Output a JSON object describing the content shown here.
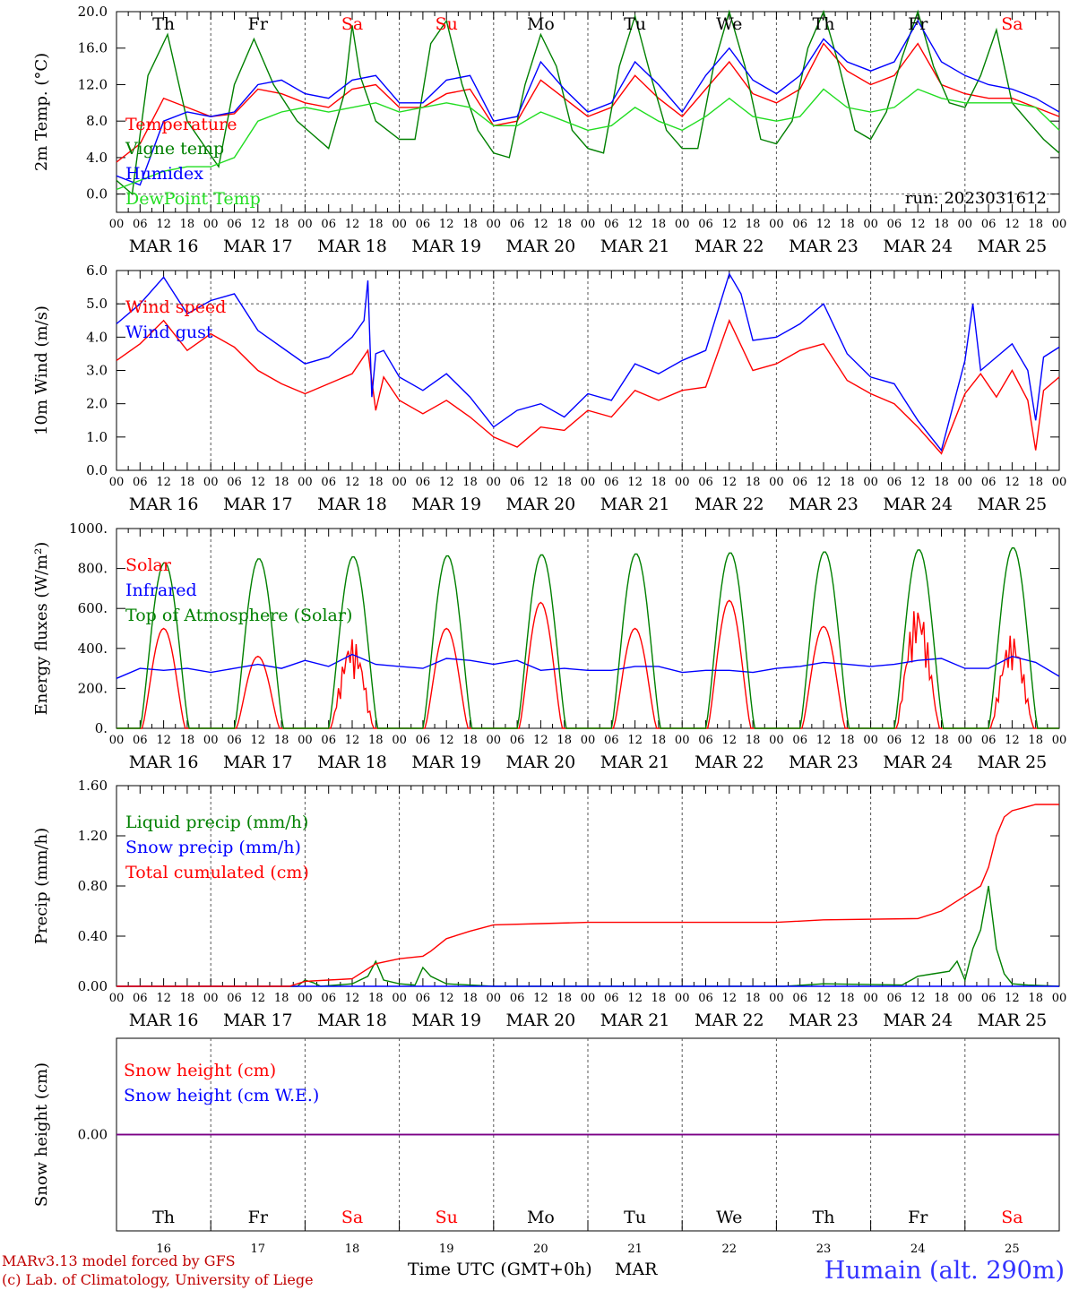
{
  "colors": {
    "red": "#ff0000",
    "blue": "#0000ff",
    "dark_green": "#008000",
    "light_green": "#22dd22",
    "purple": "#800080",
    "weekday_black": "#000000",
    "weekday_weekend": "#ff0000",
    "station": "#3333ff"
  },
  "days": {
    "weekdays": [
      "Th",
      "Fr",
      "Sa",
      "Su",
      "Mo",
      "Tu",
      "We",
      "Th",
      "Fr",
      "Sa"
    ],
    "weekend": [
      false,
      false,
      true,
      true,
      false,
      false,
      false,
      false,
      false,
      true
    ],
    "dates": [
      "MAR 16",
      "MAR 17",
      "MAR 18",
      "MAR 19",
      "MAR 20",
      "MAR 21",
      "MAR 22",
      "MAR 23",
      "MAR 24",
      "MAR 25"
    ],
    "day_numbers": [
      "16",
      "17",
      "18",
      "19",
      "20",
      "21",
      "22",
      "23",
      "24",
      "25"
    ],
    "hour_labels": [
      "00",
      "06",
      "12",
      "18"
    ],
    "end_hour_label": "00"
  },
  "run_label": "run: 2023031612",
  "footer": {
    "credit_line1": "MARv3.13 model forced by GFS",
    "credit_line2": "(c) Lab. of Climatology, University of Liege",
    "xlabel": "Time UTC (GMT+0h)",
    "month": "MAR",
    "station": "Humain (alt. 290m)"
  },
  "chart_data": [
    {
      "type": "line",
      "ylabel": "2m Temp. (°C)",
      "yticks": [
        "0.0",
        "4.0",
        "8.0",
        "12.0",
        "16.0",
        "20.0"
      ],
      "ylim": [
        -2,
        20
      ],
      "reference_line": 0,
      "x_unit": "hours since MAR 16 00 UTC",
      "series": [
        {
          "name": "Temperature",
          "color": "red",
          "x": [
            0,
            6,
            12,
            18,
            24,
            30,
            36,
            42,
            48,
            54,
            60,
            66,
            72,
            78,
            84,
            90,
            96,
            102,
            108,
            114,
            120,
            126,
            132,
            138,
            144,
            150,
            156,
            162,
            168,
            174,
            180,
            186,
            192,
            198,
            204,
            210,
            216,
            222,
            228,
            234,
            240
          ],
          "values": [
            3.5,
            5.5,
            10.5,
            9.5,
            8.5,
            8.8,
            11.5,
            11,
            10,
            9.5,
            11.5,
            12,
            9.5,
            9.5,
            11,
            11.5,
            7.5,
            8,
            12.5,
            10.5,
            8.5,
            9.5,
            13,
            10.5,
            8.5,
            11.5,
            14.5,
            11,
            10,
            11.5,
            16.5,
            13.5,
            12,
            13,
            16.5,
            12,
            11,
            10.5,
            10.5,
            9.5,
            8.5
          ]
        },
        {
          "name": "Vigne temp",
          "color": "dark_green",
          "x": [
            0,
            4,
            8,
            13,
            18,
            22,
            26,
            30,
            35,
            40,
            46,
            50,
            54,
            58,
            60,
            62,
            66,
            72,
            76,
            80,
            84,
            88,
            92,
            96,
            100,
            104,
            108,
            112,
            116,
            120,
            124,
            128,
            132,
            136,
            140,
            144,
            148,
            152,
            156,
            160,
            164,
            168,
            172,
            176,
            180,
            184,
            188,
            192,
            196,
            200,
            204,
            208,
            212,
            216,
            220,
            224,
            228,
            232,
            236,
            240
          ],
          "values": [
            1.5,
            0,
            13,
            17.5,
            8,
            5.5,
            3,
            12,
            17,
            12,
            8,
            6.5,
            5,
            11,
            18.5,
            13,
            8,
            6,
            6,
            16.5,
            19,
            12,
            7,
            4.5,
            4,
            12,
            17.5,
            14,
            7,
            5,
            4.5,
            14,
            19.5,
            13,
            7,
            5,
            5,
            14,
            20,
            14,
            6,
            5.5,
            8,
            16,
            20,
            14,
            7,
            6,
            9,
            15,
            20,
            14,
            10,
            9.5,
            13,
            18,
            10,
            8,
            6,
            4.5
          ]
        },
        {
          "name": "Humidex",
          "color": "blue",
          "x": [
            0,
            6,
            12,
            18,
            24,
            30,
            36,
            42,
            48,
            54,
            60,
            66,
            72,
            78,
            84,
            90,
            96,
            102,
            108,
            114,
            120,
            126,
            132,
            138,
            144,
            150,
            156,
            162,
            168,
            174,
            180,
            186,
            192,
            198,
            204,
            210,
            216,
            222,
            228,
            234,
            240
          ],
          "values": [
            2,
            1,
            8,
            9,
            8.5,
            9,
            12,
            12.5,
            11,
            10.5,
            12.5,
            13,
            10,
            10,
            12.5,
            13,
            8,
            8.5,
            14.5,
            11.5,
            9,
            10,
            14.5,
            12,
            9,
            13,
            16,
            12.5,
            11,
            13,
            17,
            14.5,
            13.5,
            14.5,
            19,
            14.5,
            13,
            12,
            11.5,
            10.5,
            9
          ]
        },
        {
          "name": "DewPoint Temp",
          "color": "light_green",
          "x": [
            0,
            6,
            12,
            18,
            24,
            30,
            36,
            42,
            48,
            54,
            60,
            66,
            72,
            78,
            84,
            90,
            96,
            102,
            108,
            114,
            120,
            126,
            132,
            138,
            144,
            150,
            156,
            162,
            168,
            174,
            180,
            186,
            192,
            198,
            204,
            210,
            216,
            222,
            228,
            234,
            240
          ],
          "values": [
            0.5,
            1.5,
            2.5,
            3,
            3,
            4,
            8,
            9,
            9.5,
            9,
            9.5,
            10,
            9,
            9.5,
            10,
            9.5,
            7.5,
            7.5,
            9,
            8,
            7,
            7.5,
            9.5,
            8,
            7,
            8.5,
            10.5,
            8.5,
            8,
            8.5,
            11.5,
            9.5,
            9,
            9.5,
            11.5,
            10.5,
            10,
            10,
            10,
            9.5,
            7
          ]
        }
      ]
    },
    {
      "type": "line",
      "ylabel": "10m Wind (m/s)",
      "yticks": [
        "0.0",
        "1.0",
        "2.0",
        "3.0",
        "4.0",
        "5.0",
        "6.0"
      ],
      "ylim": [
        0,
        6
      ],
      "reference_line": 5,
      "x_unit": "hours since MAR 16 00 UTC",
      "series": [
        {
          "name": "Wind speed",
          "color": "red",
          "x": [
            0,
            6,
            12,
            18,
            24,
            30,
            36,
            42,
            48,
            54,
            60,
            64,
            66,
            68,
            72,
            78,
            84,
            90,
            96,
            102,
            108,
            114,
            120,
            126,
            132,
            138,
            144,
            150,
            156,
            162,
            168,
            174,
            180,
            186,
            192,
            198,
            204,
            210,
            216,
            220,
            224,
            228,
            232,
            234,
            236,
            240
          ],
          "values": [
            3.3,
            3.8,
            4.5,
            3.6,
            4.1,
            3.7,
            3.0,
            2.6,
            2.3,
            2.6,
            2.9,
            3.6,
            1.8,
            2.8,
            2.1,
            1.7,
            2.1,
            1.6,
            1.0,
            0.7,
            1.3,
            1.2,
            1.8,
            1.6,
            2.4,
            2.1,
            2.4,
            2.5,
            4.5,
            3.0,
            3.2,
            3.6,
            3.8,
            2.7,
            2.3,
            2.0,
            1.3,
            0.5,
            2.3,
            2.9,
            2.2,
            3.0,
            2.1,
            0.6,
            2.4,
            2.8
          ]
        },
        {
          "name": "Wind gust",
          "color": "blue",
          "x": [
            0,
            6,
            12,
            18,
            24,
            30,
            36,
            42,
            48,
            54,
            60,
            63,
            64,
            65,
            66,
            68,
            72,
            78,
            84,
            90,
            96,
            102,
            108,
            114,
            120,
            126,
            132,
            138,
            144,
            150,
            156,
            159,
            162,
            168,
            174,
            180,
            186,
            192,
            198,
            204,
            210,
            216,
            218,
            220,
            224,
            228,
            232,
            234,
            236,
            240
          ],
          "values": [
            4.4,
            5.0,
            5.8,
            4.7,
            5.1,
            5.3,
            4.2,
            3.7,
            3.2,
            3.4,
            4.0,
            4.5,
            5.7,
            2.2,
            3.5,
            3.6,
            2.8,
            2.4,
            2.9,
            2.2,
            1.3,
            1.8,
            2.0,
            1.6,
            2.3,
            2.1,
            3.2,
            2.9,
            3.3,
            3.6,
            5.9,
            5.3,
            3.9,
            4.0,
            4.4,
            5.0,
            3.5,
            2.8,
            2.6,
            1.5,
            0.6,
            3.3,
            5.0,
            3.0,
            3.4,
            3.8,
            3.0,
            1.5,
            3.4,
            3.7
          ]
        }
      ]
    },
    {
      "type": "line",
      "ylabel": "Energy fluxes (W/m²)",
      "yticks": [
        "0.",
        "200.",
        "400.",
        "600.",
        "800.",
        "1000."
      ],
      "ylim": [
        0,
        1000
      ],
      "x_unit": "hours since MAR 16 00 UTC",
      "series": [
        {
          "name": "Solar",
          "color": "red",
          "daily_peaks": [
            500,
            360,
            450,
            500,
            630,
            500,
            640,
            510,
            620,
            470
          ]
        },
        {
          "name": "Infrared",
          "color": "blue",
          "x": [
            0,
            6,
            12,
            18,
            24,
            30,
            36,
            42,
            48,
            54,
            60,
            66,
            72,
            78,
            84,
            90,
            96,
            102,
            108,
            114,
            120,
            126,
            132,
            138,
            144,
            150,
            156,
            162,
            168,
            174,
            180,
            186,
            192,
            198,
            204,
            210,
            216,
            222,
            228,
            234,
            240
          ],
          "values": [
            250,
            300,
            290,
            300,
            280,
            300,
            320,
            300,
            340,
            310,
            370,
            320,
            310,
            300,
            350,
            340,
            320,
            340,
            290,
            300,
            290,
            290,
            310,
            310,
            280,
            290,
            290,
            280,
            300,
            310,
            330,
            320,
            310,
            320,
            340,
            350,
            300,
            300,
            360,
            330,
            260
          ]
        },
        {
          "name": "Top of Atmosphere (Solar)",
          "color": "dark_green",
          "daily_peaks": [
            830,
            850,
            860,
            865,
            870,
            875,
            880,
            885,
            895,
            905
          ]
        }
      ]
    },
    {
      "type": "line",
      "ylabel": "Precip (mm/h)",
      "yticks": [
        "0.00",
        "0.40",
        "0.80",
        "1.20",
        "1.60"
      ],
      "ylim": [
        0,
        1.6
      ],
      "x_unit": "hours since MAR 16 00 UTC",
      "series": [
        {
          "name": "Liquid precip (mm/h)",
          "color": "dark_green",
          "x": [
            0,
            46,
            48,
            50,
            52,
            60,
            64,
            66,
            68,
            72,
            76,
            78,
            80,
            84,
            90,
            96,
            120,
            170,
            180,
            200,
            204,
            208,
            212,
            214,
            216,
            218,
            220,
            222,
            224,
            226,
            228,
            232,
            240
          ],
          "values": [
            0,
            0,
            0.05,
            0.03,
            0,
            0.02,
            0.08,
            0.2,
            0.05,
            0.02,
            0.01,
            0.15,
            0.08,
            0.02,
            0.01,
            0,
            0,
            0,
            0.02,
            0.01,
            0.08,
            0.1,
            0.12,
            0.2,
            0.05,
            0.3,
            0.45,
            0.8,
            0.3,
            0.1,
            0.02,
            0.01,
            0
          ]
        },
        {
          "name": "Snow precip (mm/h)",
          "color": "blue",
          "x": [
            0,
            240
          ],
          "values": [
            0,
            0
          ]
        },
        {
          "name": "Total cumulated (cm)",
          "color": "red",
          "x": [
            0,
            44,
            48,
            54,
            60,
            66,
            72,
            78,
            80,
            84,
            90,
            96,
            108,
            120,
            144,
            168,
            180,
            204,
            210,
            216,
            220,
            222,
            224,
            226,
            228,
            234,
            240
          ],
          "values": [
            0,
            0,
            0.04,
            0.05,
            0.06,
            0.18,
            0.22,
            0.24,
            0.28,
            0.38,
            0.44,
            0.49,
            0.5,
            0.51,
            0.51,
            0.51,
            0.53,
            0.54,
            0.6,
            0.72,
            0.8,
            0.95,
            1.2,
            1.35,
            1.4,
            1.45,
            1.45
          ]
        }
      ]
    },
    {
      "type": "line",
      "ylabel": "Snow height (cm)",
      "yticks": [
        "0.00"
      ],
      "ylim": [
        -1,
        1
      ],
      "x_unit": "hours since MAR 16 00 UTC",
      "series": [
        {
          "name": "Snow height (cm)",
          "color": "red",
          "x": [
            0,
            240
          ],
          "values": [
            0,
            0
          ]
        },
        {
          "name": "Snow height (cm W.E.)",
          "color": "blue",
          "x": [
            0,
            240
          ],
          "values": [
            0,
            0
          ]
        }
      ]
    }
  ]
}
